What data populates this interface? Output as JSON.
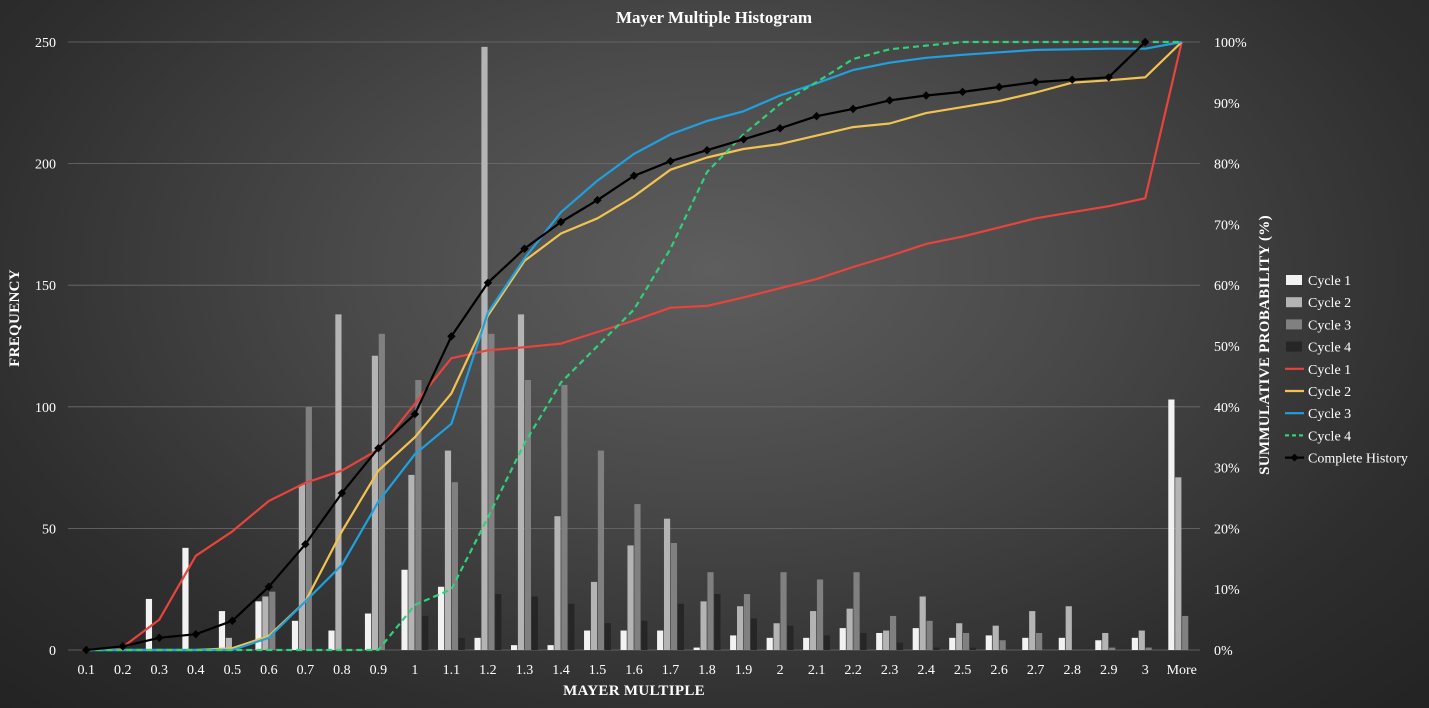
{
  "chart_data": {
    "type": "bar",
    "title": "Mayer Multiple Histogram",
    "xlabel": "MAYER MULTIPLE",
    "ylabel": "FREQUENCY",
    "ylabel_right": "SUMMULATIVE PROBABILITY (%)",
    "categories": [
      "0.1",
      "0.2",
      "0.3",
      "0.4",
      "0.5",
      "0.6",
      "0.7",
      "0.8",
      "0.9",
      "1",
      "1.1",
      "1.2",
      "1.3",
      "1.4",
      "1.5",
      "1.6",
      "1.7",
      "1.8",
      "1.9",
      "2",
      "2.1",
      "2.2",
      "2.3",
      "2.4",
      "2.5",
      "2.6",
      "2.7",
      "2.8",
      "2.9",
      "3",
      "More"
    ],
    "ylim": [
      0,
      250
    ],
    "yticks": [
      "0",
      "50",
      "100",
      "150",
      "200",
      "250"
    ],
    "y2lim": [
      0,
      100
    ],
    "y2ticks": [
      "0%",
      "10%",
      "20%",
      "30%",
      "40%",
      "50%",
      "60%",
      "70%",
      "80%",
      "90%",
      "100%"
    ],
    "grid": true,
    "legend_position": "right",
    "bar_series": [
      {
        "name": "Cycle 1",
        "color": "#f2f2f2",
        "values": [
          0,
          0,
          21,
          42,
          16,
          20,
          12,
          8,
          15,
          33,
          26,
          5,
          2,
          2,
          8,
          8,
          8,
          1,
          6,
          5,
          5,
          9,
          7,
          9,
          5,
          6,
          5,
          5,
          4,
          5,
          103
        ]
      },
      {
        "name": "Cycle 2",
        "color": "#b4b4b4",
        "values": [
          0,
          0,
          0,
          0,
          5,
          22,
          68,
          138,
          121,
          72,
          82,
          248,
          138,
          55,
          28,
          43,
          54,
          20,
          18,
          11,
          16,
          17,
          8,
          22,
          11,
          10,
          16,
          18,
          7,
          8,
          71
        ]
      },
      {
        "name": "Cycle 3",
        "color": "#808080",
        "values": [
          0,
          0,
          0,
          0,
          0,
          24,
          100,
          0,
          130,
          111,
          69,
          130,
          111,
          109,
          82,
          60,
          44,
          32,
          23,
          32,
          29,
          32,
          14,
          12,
          7,
          4,
          7,
          0,
          1,
          1,
          14
        ]
      },
      {
        "name": "Cycle 4",
        "color": "#262626",
        "values": [
          0,
          0,
          0,
          0,
          0,
          0,
          0,
          0,
          0,
          14,
          5,
          23,
          22,
          19,
          11,
          12,
          19,
          23,
          13,
          10,
          6,
          7,
          3,
          1,
          1,
          0,
          0,
          0,
          0,
          0,
          0
        ]
      }
    ],
    "line_series": [
      {
        "name": "Cycle 1",
        "color": "#e8433c",
        "dash": "none",
        "values": [
          0,
          0.5,
          5,
          15.5,
          19.5,
          24.5,
          27.5,
          29.5,
          33,
          40.5,
          48,
          49.3,
          49.8,
          50.4,
          52.3,
          54.2,
          56.3,
          56.6,
          58,
          59.5,
          61,
          63,
          64.8,
          66.8,
          68,
          69.5,
          71,
          72,
          73,
          74.3,
          100
        ]
      },
      {
        "name": "Cycle 2",
        "color": "#f2c350",
        "dash": "none",
        "values": [
          0,
          0,
          0,
          0,
          0.3,
          2.3,
          8,
          19.5,
          29.5,
          35,
          42.2,
          55,
          64,
          68.5,
          71,
          74.6,
          79,
          81,
          82.4,
          83.2,
          84.6,
          86,
          86.6,
          88.3,
          89.3,
          90.3,
          91.7,
          93.3,
          93.7,
          94.2,
          100
        ]
      },
      {
        "name": "Cycle 3",
        "color": "#1fa0e0",
        "dash": "none",
        "values": [
          0,
          0,
          0,
          0,
          0,
          2,
          8,
          14,
          24.4,
          32.2,
          37.2,
          55.5,
          64.4,
          72,
          77.2,
          81.6,
          84.8,
          87,
          88.6,
          91.2,
          93.2,
          95.4,
          96.6,
          97.4,
          97.9,
          98.3,
          98.7,
          98.8,
          98.9,
          98.9,
          100
        ]
      },
      {
        "name": "Cycle 4",
        "color": "#2ed27a",
        "dash": "6,4",
        "values": [
          0,
          0,
          0,
          0,
          0,
          0,
          0,
          0,
          0,
          7.4,
          10,
          21.8,
          34,
          44,
          50,
          56,
          66,
          78.6,
          84.8,
          89.8,
          93.4,
          97.2,
          98.8,
          99.4,
          100,
          100,
          100,
          100,
          100,
          100,
          100
        ]
      },
      {
        "name": "Complete History",
        "color": "#000000",
        "dash": "none",
        "marker": "diamond",
        "values": [
          0,
          0.6,
          2,
          2.6,
          4.8,
          10.4,
          17.4,
          25.8,
          33.2,
          38.8,
          51.6,
          60.4,
          66,
          70.4,
          74,
          78,
          80.4,
          82.2,
          84,
          85.8,
          87.8,
          89,
          90.4,
          91.2,
          91.8,
          92.6,
          93.4,
          93.8,
          94.2,
          100,
          null
        ]
      }
    ]
  }
}
